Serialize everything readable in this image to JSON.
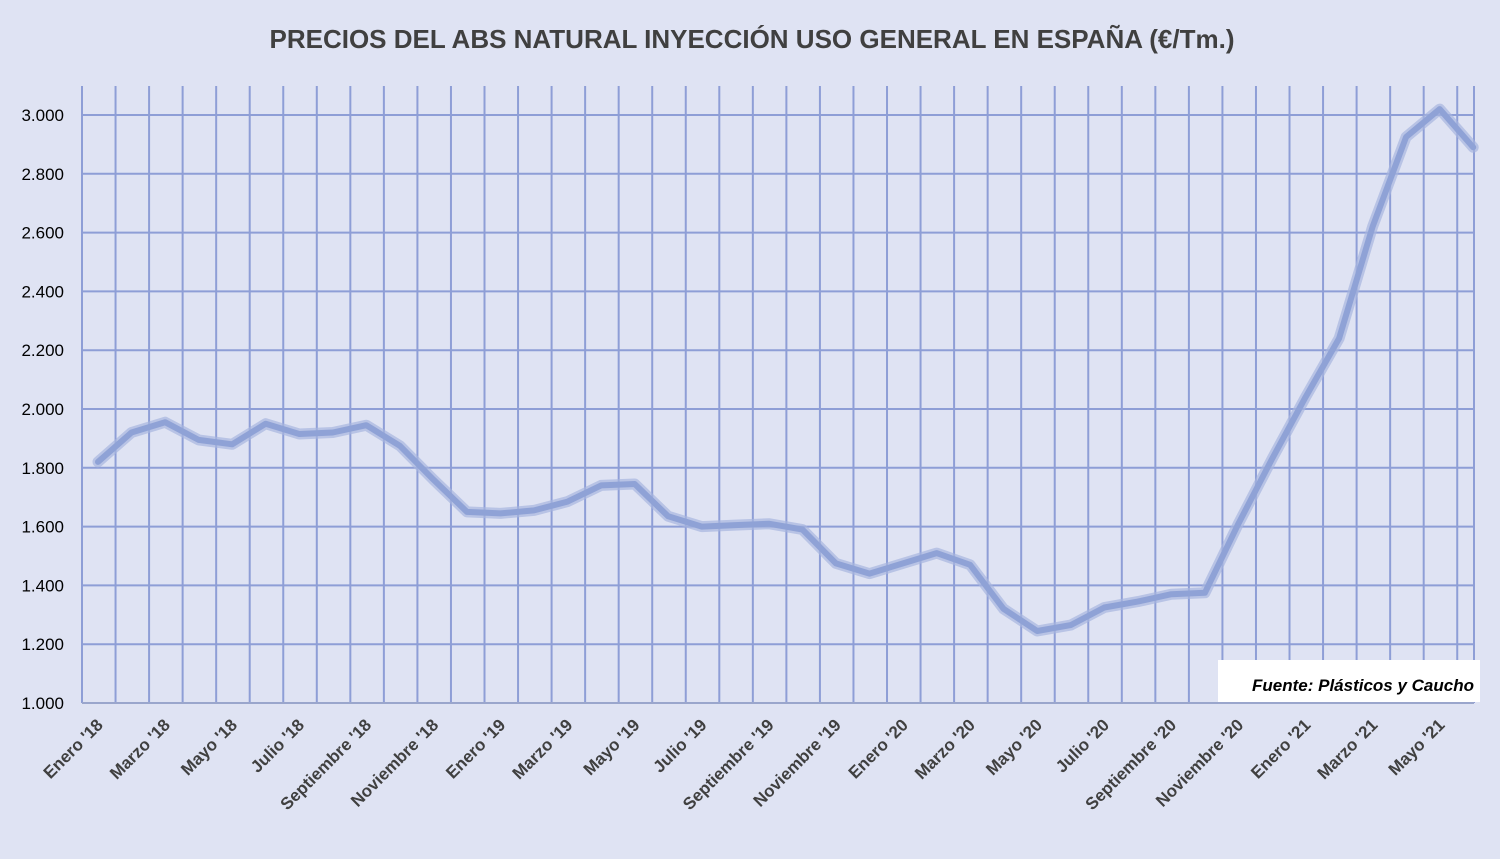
{
  "chart_data": {
    "type": "line",
    "title": "PRECIOS DEL ABS NATURAL INYECCIÓN  USO GENERAL EN ESPAÑA  (€/Tm.)",
    "source_note": "Fuente: Plásticos y Caucho",
    "ylim": [
      1000,
      3000
    ],
    "y_ticks": [
      "1.000",
      "1.200",
      "1.400",
      "1.600",
      "1.800",
      "2.000",
      "2.200",
      "2.400",
      "2.600",
      "2.800",
      "3.000"
    ],
    "y_tick_values": [
      1000,
      1200,
      1400,
      1600,
      1800,
      2000,
      2200,
      2400,
      2600,
      2800,
      3000
    ],
    "x_tick_labels": [
      "Enero '18",
      "Marzo '18",
      "Mayo '18",
      "Julio '18",
      "Septiembre '18",
      "Noviembre '18",
      "Enero '19",
      "Marzo '19",
      "Mayo '19",
      "Julio '19",
      "Septiembre '19",
      "Noviembre '19",
      "Enero '20",
      "Marzo '20",
      "Mayo '20",
      "Julio '20",
      "Septiembre '20",
      "Noviembre '20",
      "Enero '21",
      "Marzo '21",
      "Mayo '21"
    ],
    "x": [
      "Enero '18",
      "Febrero '18",
      "Marzo '18",
      "Abril '18",
      "Mayo '18",
      "Junio '18",
      "Julio '18",
      "Agosto '18",
      "Septiembre '18",
      "Octubre '18",
      "Noviembre '18",
      "Diciembre '18",
      "Enero '19",
      "Febrero '19",
      "Marzo '19",
      "Abril '19",
      "Mayo '19",
      "Junio '19",
      "Julio '19",
      "Agosto '19",
      "Septiembre '19",
      "Octubre '19",
      "Noviembre '19",
      "Diciembre '19",
      "Enero '20",
      "Febrero '20",
      "Marzo '20",
      "Abril '20",
      "Mayo '20",
      "Junio '20",
      "Julio '20",
      "Agosto '20",
      "Septiembre '20",
      "Octubre '20",
      "Noviembre '20",
      "Diciembre '20",
      "Enero '21",
      "Febrero '21",
      "Marzo '21",
      "Abril '21",
      "Mayo '21",
      "Junio '21"
    ],
    "series": [
      {
        "values": [
          1820,
          1920,
          1955,
          1895,
          1880,
          1950,
          1915,
          1920,
          1945,
          1875,
          1760,
          1650,
          1645,
          1655,
          1685,
          1740,
          1745,
          1635,
          1600,
          1605,
          1610,
          1590,
          1475,
          1440,
          1475,
          1510,
          1470,
          1320,
          1245,
          1265,
          1325,
          1345,
          1370,
          1375,
          1610,
          1830,
          2040,
          2240,
          2620,
          2925,
          3020,
          2890
        ]
      }
    ],
    "line_color": "#8fa2d6",
    "grid": true,
    "grid_color": "#8e9ed6",
    "background_color": "#dfe3f3"
  }
}
